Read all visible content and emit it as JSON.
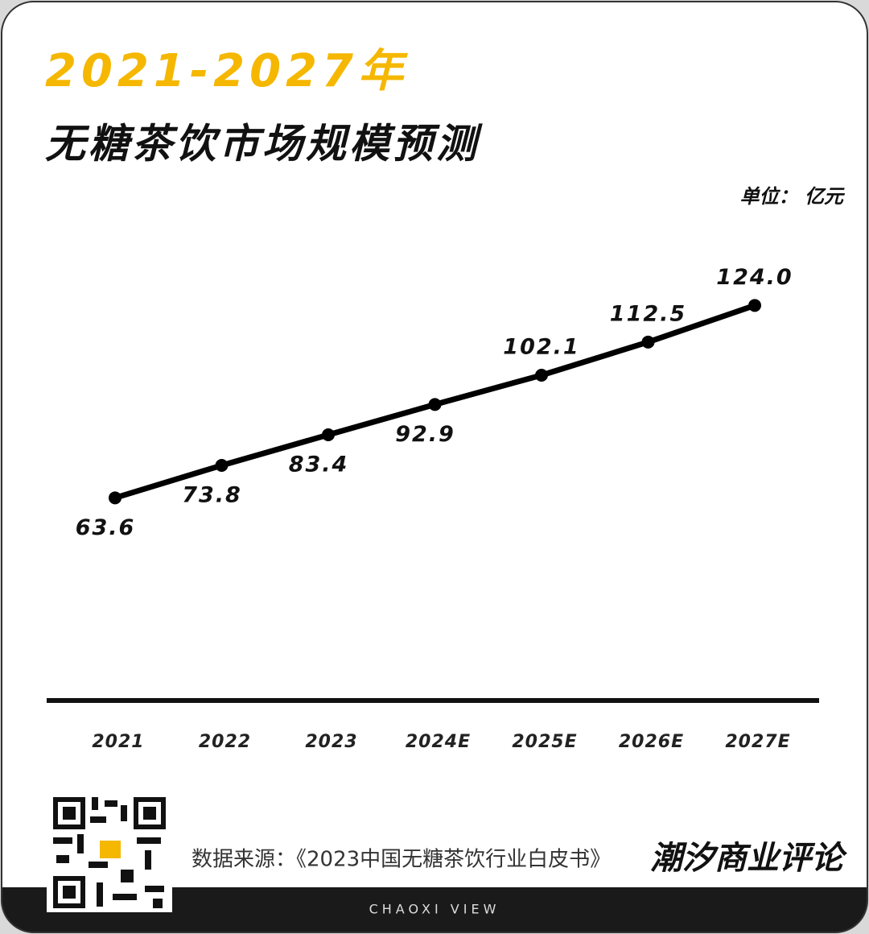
{
  "chart_data": {
    "type": "line",
    "title": "2021-2027年",
    "subtitle": "无糖茶饮市场规模预测",
    "unit": "单位： 亿元",
    "categories": [
      "2021",
      "2022",
      "2023",
      "2024E",
      "2025E",
      "2026E",
      "2027E"
    ],
    "values": [
      63.6,
      73.8,
      83.4,
      92.9,
      102.1,
      112.5,
      124.0
    ],
    "value_labels": [
      "63.6",
      "73.8",
      "83.4",
      "92.9",
      "102.1",
      "112.5",
      "124.0"
    ],
    "color": "#000000",
    "source": "数据来源：《2023中国无糖茶饮行业白皮书》",
    "brand": "潮汐商业评论",
    "footer": "CHAOXI VIEW"
  }
}
